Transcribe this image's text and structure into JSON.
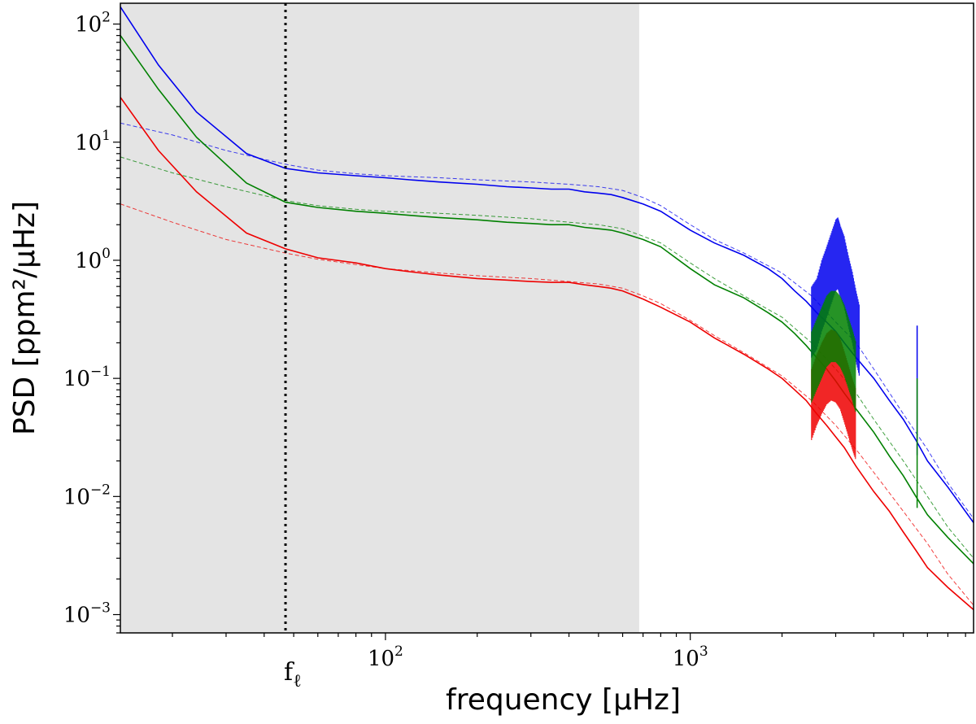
{
  "chart_data": {
    "type": "line",
    "xscale": "log",
    "yscale": "log",
    "xlim": [
      13.5,
      8500
    ],
    "ylim": [
      0.0007,
      150
    ],
    "xlabel": "frequency [μHz]",
    "ylabel": "PSD [ppm²/μHz]",
    "x_tick_labels": [
      {
        "value": 100,
        "base": "10",
        "exp": "2"
      },
      {
        "value": 1000,
        "base": "10",
        "exp": "3"
      }
    ],
    "y_tick_labels": [
      {
        "value": 100,
        "base": "10",
        "exp": "2"
      },
      {
        "value": 10,
        "base": "10",
        "exp": "1"
      },
      {
        "value": 1,
        "base": "10",
        "exp": "0"
      },
      {
        "value": 0.1,
        "base": "10",
        "exp": "−1"
      },
      {
        "value": 0.01,
        "base": "10",
        "exp": "−2"
      },
      {
        "value": 0.001,
        "base": "10",
        "exp": "−3"
      }
    ],
    "shaded_region": {
      "x": [
        13.5,
        680
      ],
      "color": "#e4e4e4"
    },
    "vertical_line": {
      "x": 47,
      "style": "dotted",
      "label_base": "f",
      "label_sub": "ℓ"
    },
    "grid": false,
    "legend": "none",
    "series": [
      {
        "color": "#0000ee",
        "style": "solid",
        "x": [
          13.5,
          18,
          24,
          35,
          47,
          60,
          80,
          100,
          120,
          150,
          200,
          250,
          300,
          350,
          400,
          450,
          500,
          550,
          600,
          700,
          800,
          1000,
          1200,
          1500,
          1800,
          2000,
          2200,
          2400,
          2600,
          2800,
          3000,
          3200,
          3500,
          4000,
          4500,
          5000,
          5500,
          6000,
          7000,
          8500
        ],
        "y": [
          140,
          45,
          18,
          8,
          6,
          5.5,
          5.2,
          5,
          4.8,
          4.6,
          4.4,
          4.2,
          4.1,
          4,
          4,
          3.8,
          3.7,
          3.6,
          3.4,
          3,
          2.6,
          1.8,
          1.4,
          1.1,
          0.85,
          0.7,
          0.55,
          0.45,
          0.36,
          0.3,
          0.25,
          0.2,
          0.15,
          0.1,
          0.065,
          0.045,
          0.03,
          0.02,
          0.012,
          0.006
        ]
      },
      {
        "color": "#0000ee",
        "style": "dashed",
        "x": [
          13.5,
          20,
          30,
          47,
          60,
          80,
          100,
          150,
          200,
          300,
          400,
          500,
          600,
          700,
          800,
          1000,
          1200,
          1500,
          2000,
          2500,
          3000,
          3500,
          4000,
          5000,
          6000,
          7000,
          8500
        ],
        "y": [
          14.5,
          11.5,
          8.5,
          6.5,
          5.8,
          5.4,
          5.2,
          5,
          4.8,
          4.6,
          4.4,
          4.2,
          3.9,
          3.4,
          2.9,
          2,
          1.5,
          1.15,
          0.78,
          0.5,
          0.3,
          0.2,
          0.12,
          0.05,
          0.025,
          0.013,
          0.0065
        ]
      },
      {
        "color": "#008000",
        "style": "solid",
        "x": [
          13.5,
          18,
          24,
          35,
          47,
          60,
          80,
          100,
          120,
          150,
          200,
          250,
          300,
          350,
          400,
          450,
          500,
          550,
          600,
          700,
          800,
          1000,
          1200,
          1500,
          1800,
          2000,
          2200,
          2400,
          2600,
          2800,
          3000,
          3200,
          3500,
          4000,
          4500,
          5000,
          5500,
          6000,
          7000,
          8500
        ],
        "y": [
          80,
          28,
          11,
          4.5,
          3.1,
          2.8,
          2.6,
          2.5,
          2.4,
          2.3,
          2.2,
          2.1,
          2.05,
          2,
          2,
          1.9,
          1.85,
          1.8,
          1.7,
          1.5,
          1.3,
          0.85,
          0.62,
          0.48,
          0.36,
          0.3,
          0.24,
          0.19,
          0.15,
          0.12,
          0.095,
          0.075,
          0.055,
          0.035,
          0.022,
          0.015,
          0.01,
          0.007,
          0.0045,
          0.0027
        ]
      },
      {
        "color": "#008000",
        "style": "dashed",
        "x": [
          13.5,
          20,
          30,
          47,
          60,
          80,
          100,
          150,
          200,
          300,
          400,
          500,
          600,
          700,
          800,
          1000,
          1200,
          1500,
          2000,
          2500,
          3000,
          3500,
          4000,
          5000,
          6000,
          7000,
          8500
        ],
        "y": [
          7.5,
          5.5,
          4.2,
          3.2,
          2.9,
          2.7,
          2.6,
          2.5,
          2.4,
          2.25,
          2.1,
          2,
          1.85,
          1.6,
          1.4,
          0.95,
          0.7,
          0.5,
          0.33,
          0.2,
          0.12,
          0.075,
          0.045,
          0.02,
          0.01,
          0.0055,
          0.003
        ]
      },
      {
        "color": "#ee0000",
        "style": "solid",
        "x": [
          13.5,
          18,
          24,
          35,
          47,
          60,
          80,
          100,
          120,
          150,
          200,
          250,
          300,
          350,
          400,
          450,
          500,
          550,
          600,
          700,
          800,
          1000,
          1200,
          1500,
          1800,
          2000,
          2200,
          2400,
          2600,
          2800,
          3000,
          3200,
          3500,
          4000,
          4500,
          5000,
          5500,
          6000,
          7000,
          8500
        ],
        "y": [
          24,
          8.5,
          3.8,
          1.7,
          1.25,
          1.05,
          0.95,
          0.85,
          0.8,
          0.75,
          0.7,
          0.68,
          0.66,
          0.65,
          0.65,
          0.62,
          0.6,
          0.58,
          0.55,
          0.47,
          0.4,
          0.3,
          0.22,
          0.16,
          0.12,
          0.1,
          0.08,
          0.065,
          0.05,
          0.04,
          0.032,
          0.026,
          0.018,
          0.011,
          0.0075,
          0.005,
          0.0035,
          0.0025,
          0.0017,
          0.0011
        ]
      },
      {
        "color": "#ee0000",
        "style": "dashed",
        "x": [
          13.5,
          20,
          30,
          47,
          60,
          80,
          100,
          150,
          200,
          300,
          400,
          500,
          600,
          700,
          800,
          1000,
          1200,
          1500,
          2000,
          2500,
          3000,
          3500,
          4000,
          5000,
          6000,
          7000,
          8500
        ],
        "y": [
          3,
          2.1,
          1.5,
          1.15,
          1.02,
          0.92,
          0.85,
          0.78,
          0.74,
          0.7,
          0.66,
          0.63,
          0.58,
          0.5,
          0.43,
          0.31,
          0.23,
          0.165,
          0.105,
          0.065,
          0.04,
          0.025,
          0.016,
          0.0075,
          0.004,
          0.0022,
          0.0012
        ]
      },
      {
        "color": "#0000ee",
        "style": "peaks",
        "x": [
          2500,
          2600,
          2700,
          2800,
          2900,
          3000,
          3050,
          3100,
          3200,
          3300,
          3400,
          3500,
          3600
        ],
        "y": [
          0.6,
          0.7,
          1.0,
          1.3,
          1.7,
          2.2,
          2.3,
          2.0,
          1.6,
          1.1,
          0.8,
          0.55,
          0.4
        ]
      },
      {
        "color": "#ee0000",
        "style": "peaks",
        "x": [
          2500,
          2600,
          2700,
          2800,
          2900,
          3000,
          3100,
          3200,
          3300,
          3400,
          3500
        ],
        "y": [
          0.12,
          0.16,
          0.2,
          0.24,
          0.26,
          0.25,
          0.22,
          0.17,
          0.13,
          0.1,
          0.08
        ]
      },
      {
        "color": "#008000",
        "style": "peaks",
        "x": [
          2500,
          2600,
          2700,
          2800,
          2900,
          3000,
          3100,
          3200,
          3300,
          3400,
          3500
        ],
        "y": [
          0.25,
          0.32,
          0.4,
          0.5,
          0.55,
          0.55,
          0.5,
          0.42,
          0.33,
          0.26,
          0.2
        ]
      },
      {
        "color": "#0000ee",
        "style": "spike",
        "x": [
          5550
        ],
        "y": [
          0.28
        ]
      },
      {
        "color": "#008000",
        "style": "spike",
        "x": [
          5550
        ],
        "y": [
          0.1
        ]
      }
    ]
  }
}
